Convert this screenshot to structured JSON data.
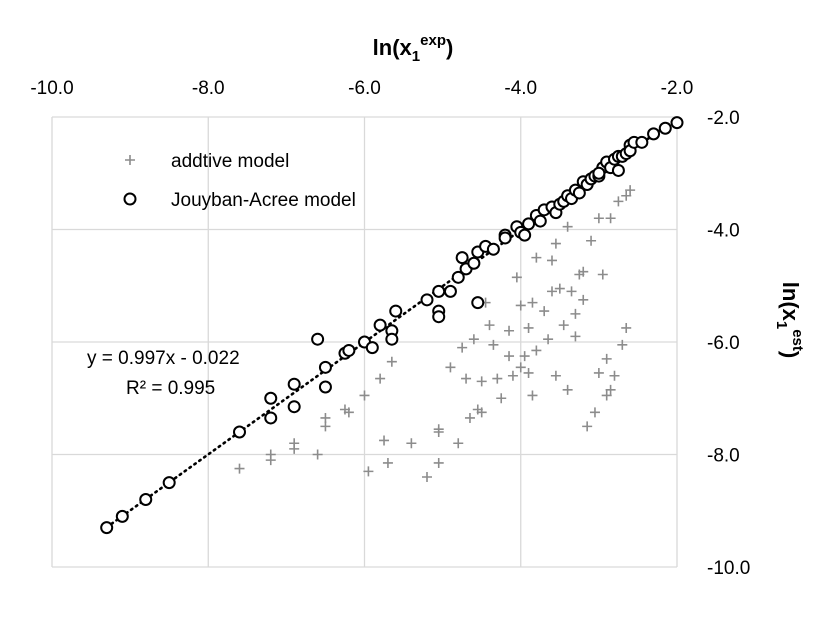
{
  "chart_data": {
    "type": "scatter",
    "xlabel": "ln(x",
    "xlabel_sub": "1",
    "xlabel_sup": "exp",
    "xlabel_end": ")",
    "ylabel": "ln(x",
    "ylabel_sub": "1",
    "ylabel_sup": "est",
    "ylabel_end": ")",
    "xlim": [
      -10.0,
      -2.0
    ],
    "ylim": [
      -10.0,
      -2.0
    ],
    "x_axis_position": "top",
    "y_axis_position": "right",
    "y_inverted": true,
    "grid": true,
    "x_ticks": [
      "-10.0",
      "-8.0",
      "-6.0",
      "-4.0",
      "-2.0"
    ],
    "x_tick_values": [
      -10,
      -8,
      -6,
      -4,
      -2
    ],
    "y_ticks": [
      "-2.0",
      "-4.0",
      "-6.0",
      "-8.0",
      "-10.0"
    ],
    "y_tick_values": [
      -2,
      -4,
      -6,
      -8,
      -10
    ],
    "legend_position": "top-left",
    "trendline": {
      "equation": "y = 0.997x - 0.022",
      "r2_label": "R² = 0.995",
      "slope": 0.997,
      "intercept": -0.022,
      "x_range": [
        -9.3,
        -2.0
      ],
      "style": "dotted",
      "color": "#000000"
    },
    "series": [
      {
        "name": "addtive model",
        "marker": "plus",
        "color": "#8c8c8c",
        "points": [
          [
            -7.6,
            -8.25
          ],
          [
            -7.2,
            -8.1
          ],
          [
            -7.2,
            -8.0
          ],
          [
            -6.9,
            -7.8
          ],
          [
            -6.9,
            -7.9
          ],
          [
            -6.6,
            -8.0
          ],
          [
            -6.5,
            -7.5
          ],
          [
            -6.5,
            -7.35
          ],
          [
            -6.25,
            -7.2
          ],
          [
            -6.2,
            -7.25
          ],
          [
            -6.0,
            -6.95
          ],
          [
            -5.95,
            -8.3
          ],
          [
            -5.8,
            -6.65
          ],
          [
            -5.75,
            -7.75
          ],
          [
            -5.7,
            -8.15
          ],
          [
            -5.65,
            -6.35
          ],
          [
            -5.4,
            -7.8
          ],
          [
            -5.2,
            -8.4
          ],
          [
            -5.05,
            -8.15
          ],
          [
            -5.05,
            -7.55
          ],
          [
            -5.05,
            -7.6
          ],
          [
            -4.9,
            -6.45
          ],
          [
            -4.8,
            -7.8
          ],
          [
            -4.75,
            -6.1
          ],
          [
            -4.7,
            -6.65
          ],
          [
            -4.65,
            -7.35
          ],
          [
            -4.6,
            -5.95
          ],
          [
            -4.55,
            -7.2
          ],
          [
            -4.5,
            -7.25
          ],
          [
            -4.5,
            -6.7
          ],
          [
            -4.45,
            -5.3
          ],
          [
            -4.4,
            -5.7
          ],
          [
            -4.35,
            -6.05
          ],
          [
            -4.3,
            -6.65
          ],
          [
            -4.25,
            -7.0
          ],
          [
            -4.15,
            -5.8
          ],
          [
            -4.15,
            -6.25
          ],
          [
            -4.1,
            -6.6
          ],
          [
            -4.05,
            -4.85
          ],
          [
            -4.0,
            -5.35
          ],
          [
            -4.0,
            -6.45
          ],
          [
            -3.95,
            -6.25
          ],
          [
            -3.9,
            -5.75
          ],
          [
            -3.9,
            -6.55
          ],
          [
            -3.85,
            -5.3
          ],
          [
            -3.85,
            -6.95
          ],
          [
            -3.8,
            -4.5
          ],
          [
            -3.8,
            -6.15
          ],
          [
            -3.7,
            -5.45
          ],
          [
            -3.65,
            -5.95
          ],
          [
            -3.6,
            -4.55
          ],
          [
            -3.6,
            -5.1
          ],
          [
            -3.55,
            -4.25
          ],
          [
            -3.55,
            -6.6
          ],
          [
            -3.5,
            -5.05
          ],
          [
            -3.45,
            -5.7
          ],
          [
            -3.4,
            -3.95
          ],
          [
            -3.4,
            -6.85
          ],
          [
            -3.35,
            -5.1
          ],
          [
            -3.3,
            -5.5
          ],
          [
            -3.3,
            -5.9
          ],
          [
            -3.25,
            -4.8
          ],
          [
            -3.2,
            -4.75
          ],
          [
            -3.2,
            -5.25
          ],
          [
            -3.15,
            -7.5
          ],
          [
            -3.1,
            -4.2
          ],
          [
            -3.05,
            -7.25
          ],
          [
            -3.0,
            -3.8
          ],
          [
            -3.0,
            -6.55
          ],
          [
            -2.95,
            -4.8
          ],
          [
            -2.9,
            -6.95
          ],
          [
            -2.9,
            -6.3
          ],
          [
            -2.85,
            -3.8
          ],
          [
            -2.85,
            -6.85
          ],
          [
            -2.8,
            -6.6
          ],
          [
            -2.75,
            -3.5
          ],
          [
            -2.7,
            -6.05
          ],
          [
            -2.65,
            -3.4
          ],
          [
            -2.65,
            -5.75
          ],
          [
            -2.6,
            -3.3
          ]
        ]
      },
      {
        "name": "Jouyban-Acree model",
        "marker": "circle",
        "color": "#000000",
        "points": [
          [
            -9.3,
            -9.3
          ],
          [
            -9.1,
            -9.1
          ],
          [
            -8.8,
            -8.8
          ],
          [
            -8.5,
            -8.5
          ],
          [
            -7.6,
            -7.6
          ],
          [
            -7.2,
            -7.35
          ],
          [
            -7.2,
            -7.0
          ],
          [
            -6.9,
            -7.15
          ],
          [
            -6.9,
            -6.75
          ],
          [
            -6.6,
            -5.95
          ],
          [
            -6.5,
            -6.45
          ],
          [
            -6.5,
            -6.8
          ],
          [
            -6.25,
            -6.2
          ],
          [
            -6.2,
            -6.15
          ],
          [
            -6.0,
            -6.0
          ],
          [
            -5.9,
            -6.1
          ],
          [
            -5.8,
            -5.7
          ],
          [
            -5.65,
            -5.8
          ],
          [
            -5.6,
            -5.45
          ],
          [
            -5.65,
            -5.95
          ],
          [
            -5.2,
            -5.25
          ],
          [
            -5.05,
            -5.1
          ],
          [
            -5.05,
            -5.45
          ],
          [
            -5.05,
            -5.55
          ],
          [
            -4.9,
            -5.1
          ],
          [
            -4.8,
            -4.85
          ],
          [
            -4.75,
            -4.5
          ],
          [
            -4.7,
            -4.7
          ],
          [
            -4.6,
            -4.6
          ],
          [
            -4.55,
            -4.4
          ],
          [
            -4.55,
            -5.3
          ],
          [
            -4.45,
            -4.3
          ],
          [
            -4.35,
            -4.35
          ],
          [
            -4.2,
            -4.1
          ],
          [
            -4.2,
            -4.15
          ],
          [
            -4.05,
            -3.95
          ],
          [
            -4.0,
            -4.05
          ],
          [
            -3.95,
            -4.1
          ],
          [
            -3.9,
            -3.9
          ],
          [
            -3.8,
            -3.75
          ],
          [
            -3.75,
            -3.85
          ],
          [
            -3.7,
            -3.65
          ],
          [
            -3.6,
            -3.6
          ],
          [
            -3.55,
            -3.7
          ],
          [
            -3.5,
            -3.55
          ],
          [
            -3.45,
            -3.5
          ],
          [
            -3.4,
            -3.4
          ],
          [
            -3.35,
            -3.45
          ],
          [
            -3.3,
            -3.3
          ],
          [
            -3.25,
            -3.35
          ],
          [
            -3.2,
            -3.15
          ],
          [
            -3.15,
            -3.2
          ],
          [
            -3.1,
            -3.1
          ],
          [
            -3.05,
            -3.05
          ],
          [
            -3.0,
            -3.05
          ],
          [
            -2.95,
            -2.9
          ],
          [
            -2.9,
            -2.8
          ],
          [
            -2.85,
            -2.9
          ],
          [
            -2.8,
            -2.75
          ],
          [
            -2.75,
            -2.7
          ],
          [
            -2.7,
            -2.7
          ],
          [
            -2.65,
            -2.65
          ],
          [
            -2.6,
            -2.5
          ],
          [
            -2.6,
            -2.6
          ],
          [
            -2.55,
            -2.45
          ],
          [
            -2.45,
            -2.45
          ],
          [
            -2.3,
            -2.3
          ],
          [
            -2.15,
            -2.2
          ],
          [
            -2.0,
            -2.1
          ],
          [
            -3.0,
            -3.0
          ],
          [
            -2.75,
            -2.95
          ]
        ]
      }
    ]
  }
}
